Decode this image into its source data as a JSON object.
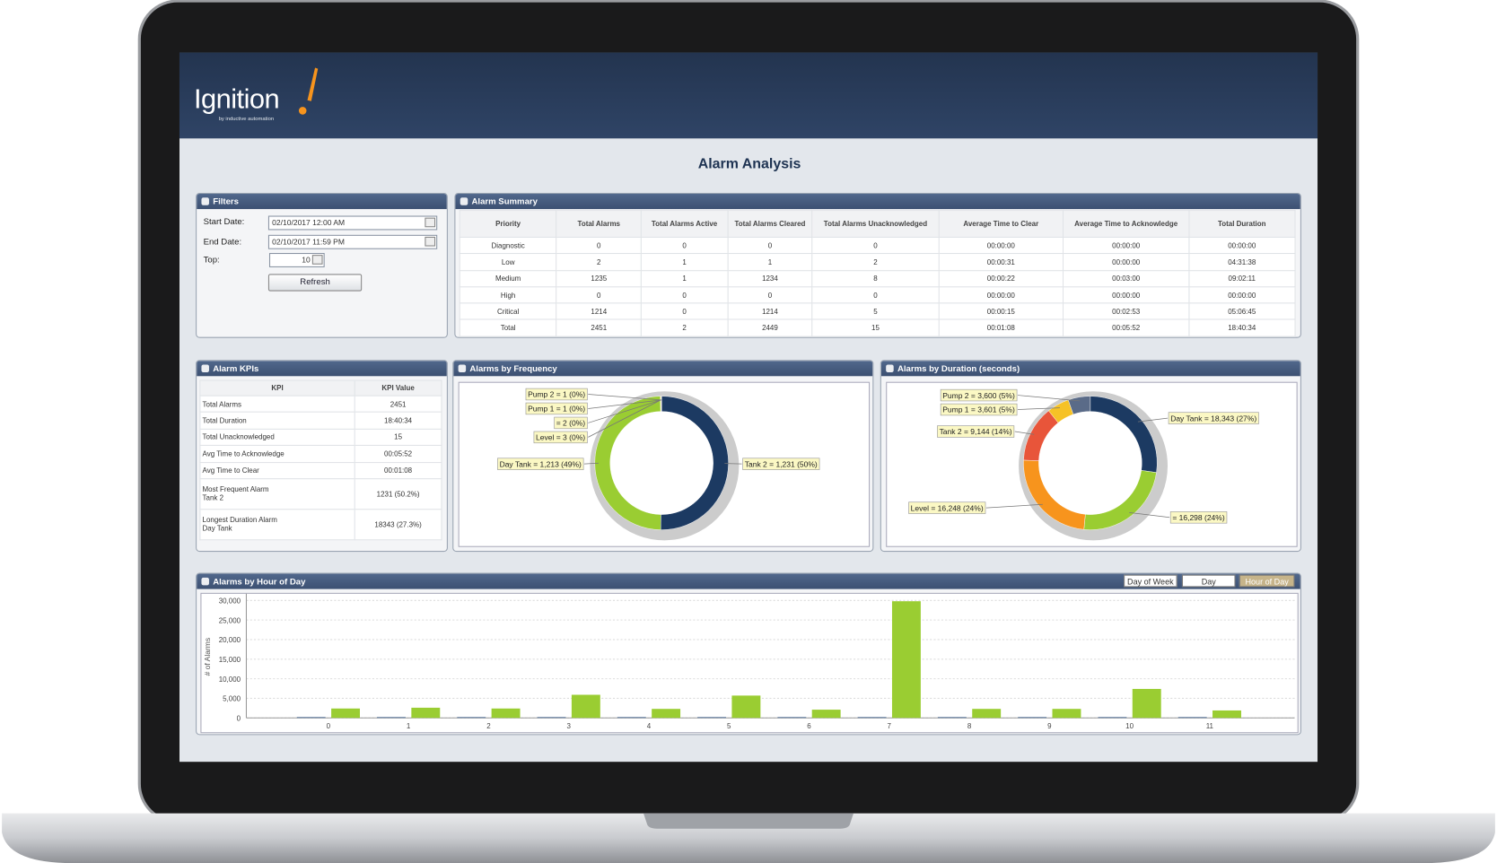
{
  "header": {
    "logo": "Ignition",
    "tagline": "by inductive automation"
  },
  "title": "Alarm Analysis",
  "filters": {
    "title": "Filters",
    "start_label": "Start Date:",
    "start_value": "02/10/2017 12:00 AM",
    "end_label": "End Date:",
    "end_value": "02/10/2017 11:59 PM",
    "top_label": "Top:",
    "top_value": 10,
    "button": "Refresh"
  },
  "summary": {
    "title": "Alarm Summary",
    "columns": [
      "Priority",
      "Total Alarms",
      "Total Alarms Active",
      "Total Alarms Cleared",
      "Total Alarms Unacknowledged",
      "Average Time to Clear",
      "Average Time to Acknowledge",
      "Total Duration"
    ],
    "rows": [
      [
        "Diagnostic",
        0,
        0,
        0,
        0,
        "00:00:00",
        "00:00:00",
        "00:00:00"
      ],
      [
        "Low",
        2,
        1,
        1,
        2,
        "00:00:31",
        "00:00:00",
        "04:31:38"
      ],
      [
        "Medium",
        1235,
        1,
        1234,
        8,
        "00:00:22",
        "00:03:00",
        "09:02:11"
      ],
      [
        "High",
        0,
        0,
        0,
        0,
        "00:00:00",
        "00:00:00",
        "00:00:00"
      ],
      [
        "Critical",
        1214,
        0,
        1214,
        5,
        "00:00:15",
        "00:02:53",
        "05:06:45"
      ],
      [
        "Total",
        2451,
        2,
        2449,
        15,
        "00:01:08",
        "00:05:52",
        "18:40:34"
      ]
    ]
  },
  "kpis": {
    "title": "Alarm KPIs",
    "columns": [
      "KPI",
      "KPI Value"
    ],
    "rows": [
      [
        "Total Alarms",
        2451
      ],
      [
        "Total Duration",
        "18:40:34"
      ],
      [
        "Total Unacknowledged",
        15
      ],
      [
        "Avg Time to Acknowledge",
        "00:05:52"
      ],
      [
        "Avg Time to Clear",
        "00:01:08"
      ],
      [
        "Most Frequent Alarm\nTank 2",
        "1231 (50.2%)"
      ],
      [
        "Longest Duration Alarm\nDay Tank",
        "18343 (27.3%)"
      ]
    ]
  },
  "chart_data": [
    {
      "type": "pie",
      "title": "Alarms by Frequency",
      "donut": true,
      "values": [
        1231,
        1213,
        3,
        2,
        1,
        1
      ],
      "value_labels": [
        "Tank 2 = 1,231 (50%)",
        "Day Tank = 1,213 (49%)",
        "Level = 3 (0%)",
        "= 2 (0%)",
        "Pump 1 = 1 (0%)",
        "Pump 2 = 1 (0%)"
      ],
      "colors": [
        "#1c3a62",
        "#9acd32",
        "#f7941d",
        "#e8553a",
        "#f6c226",
        "#5a6b88"
      ]
    },
    {
      "type": "pie",
      "title": "Alarms by Duration (seconds)",
      "donut": true,
      "values": [
        18343,
        16298,
        16248,
        9144,
        3601,
        3600
      ],
      "value_labels": [
        "Day Tank = 18,343 (27%)",
        "= 16,298 (24%)",
        "Level = 16,248 (24%)",
        "Tank 2 = 9,144 (14%)",
        "Pump 1 = 3,601 (5%)",
        "Pump 2 = 3,600 (5%)"
      ],
      "colors": [
        "#1c3a62",
        "#9acd32",
        "#f7941d",
        "#e8553a",
        "#f6c226",
        "#5a6b88"
      ]
    },
    {
      "type": "bar",
      "title": "Alarms by Hour of Day",
      "ylabel": "# of Alarms",
      "buttons": [
        "Day of Week",
        "Day",
        "Hour of Day"
      ],
      "selected_button": 2,
      "categories": [
        "0",
        "1",
        "2",
        "3",
        "4",
        "5",
        "6",
        "7",
        "8",
        "9",
        "10",
        "11"
      ],
      "series": [
        {
          "color": "#3e5f8a",
          "values": [
            200,
            200,
            200,
            200,
            200,
            200,
            200,
            200,
            200,
            200,
            200,
            200
          ]
        },
        {
          "color": "#9acd32",
          "values": [
            2400,
            2600,
            2400,
            5900,
            2300,
            5700,
            2100,
            29800,
            2300,
            2300,
            7400,
            1900
          ]
        }
      ],
      "ylim": [
        0,
        31700
      ],
      "yticks": [
        0,
        {
          "value": 5000,
          "label": "5,000"
        },
        {
          "value": 10000,
          "label": "10,000"
        },
        {
          "value": 15000,
          "label": "15,000"
        },
        {
          "value": 20000,
          "label": "20,000"
        },
        {
          "value": 25000,
          "label": "25,000"
        },
        {
          "value": 30000,
          "label": "30,000"
        }
      ],
      "grid": true
    }
  ]
}
